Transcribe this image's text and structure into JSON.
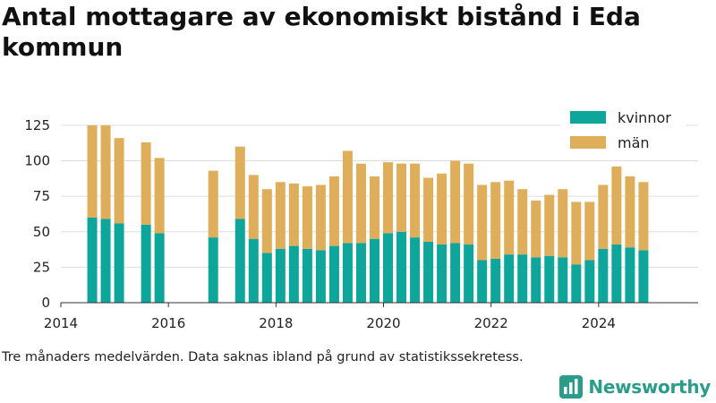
{
  "chart_data": {
    "type": "bar",
    "stacked": true,
    "title": "Antal mottagare av ekonomiskt bistånd i Eda kommun",
    "x_ticks": [
      "2014",
      "2016",
      "2018",
      "2020",
      "2022",
      "2024"
    ],
    "y_ticks": [
      "0",
      "25",
      "50",
      "75",
      "100",
      "125"
    ],
    "ylim": [
      0,
      130
    ],
    "grid": "horizontal",
    "legend_position": "top-right",
    "series": [
      {
        "name": "kvinnor",
        "color": "#0ea59a",
        "points": [
          {
            "x": "2014-08",
            "y": 60
          },
          {
            "x": "2014-11",
            "y": 59
          },
          {
            "x": "2015-02",
            "y": 56
          },
          {
            "x": "2015-08",
            "y": 55
          },
          {
            "x": "2015-11",
            "y": 49
          },
          {
            "x": "2016-11",
            "y": 46
          },
          {
            "x": "2017-05",
            "y": 59
          },
          {
            "x": "2017-08",
            "y": 45
          },
          {
            "x": "2017-11",
            "y": 35
          },
          {
            "x": "2018-02",
            "y": 38
          },
          {
            "x": "2018-05",
            "y": 40
          },
          {
            "x": "2018-08",
            "y": 38
          },
          {
            "x": "2018-11",
            "y": 37
          },
          {
            "x": "2019-02",
            "y": 40
          },
          {
            "x": "2019-05",
            "y": 42
          },
          {
            "x": "2019-08",
            "y": 42
          },
          {
            "x": "2019-11",
            "y": 45
          },
          {
            "x": "2020-02",
            "y": 49
          },
          {
            "x": "2020-05",
            "y": 50
          },
          {
            "x": "2020-08",
            "y": 46
          },
          {
            "x": "2020-11",
            "y": 43
          },
          {
            "x": "2021-02",
            "y": 41
          },
          {
            "x": "2021-05",
            "y": 42
          },
          {
            "x": "2021-08",
            "y": 41
          },
          {
            "x": "2021-11",
            "y": 30
          },
          {
            "x": "2022-02",
            "y": 31
          },
          {
            "x": "2022-05",
            "y": 34
          },
          {
            "x": "2022-08",
            "y": 34
          },
          {
            "x": "2022-11",
            "y": 32
          },
          {
            "x": "2023-02",
            "y": 33
          },
          {
            "x": "2023-05",
            "y": 32
          },
          {
            "x": "2023-08",
            "y": 27
          },
          {
            "x": "2023-11",
            "y": 30
          },
          {
            "x": "2024-02",
            "y": 38
          },
          {
            "x": "2024-05",
            "y": 41
          },
          {
            "x": "2024-08",
            "y": 39
          },
          {
            "x": "2024-11",
            "y": 37
          }
        ]
      },
      {
        "name": "män",
        "color": "#deae5a",
        "points": [
          {
            "x": "2014-08",
            "y": 65
          },
          {
            "x": "2014-11",
            "y": 66
          },
          {
            "x": "2015-02",
            "y": 60
          },
          {
            "x": "2015-08",
            "y": 58
          },
          {
            "x": "2015-11",
            "y": 53
          },
          {
            "x": "2016-11",
            "y": 47
          },
          {
            "x": "2017-05",
            "y": 51
          },
          {
            "x": "2017-08",
            "y": 45
          },
          {
            "x": "2017-11",
            "y": 45
          },
          {
            "x": "2018-02",
            "y": 47
          },
          {
            "x": "2018-05",
            "y": 44
          },
          {
            "x": "2018-08",
            "y": 44
          },
          {
            "x": "2018-11",
            "y": 46
          },
          {
            "x": "2019-02",
            "y": 49
          },
          {
            "x": "2019-05",
            "y": 65
          },
          {
            "x": "2019-08",
            "y": 56
          },
          {
            "x": "2019-11",
            "y": 44
          },
          {
            "x": "2020-02",
            "y": 50
          },
          {
            "x": "2020-05",
            "y": 48
          },
          {
            "x": "2020-08",
            "y": 52
          },
          {
            "x": "2020-11",
            "y": 45
          },
          {
            "x": "2021-02",
            "y": 50
          },
          {
            "x": "2021-05",
            "y": 58
          },
          {
            "x": "2021-08",
            "y": 57
          },
          {
            "x": "2021-11",
            "y": 53
          },
          {
            "x": "2022-02",
            "y": 54
          },
          {
            "x": "2022-05",
            "y": 52
          },
          {
            "x": "2022-08",
            "y": 46
          },
          {
            "x": "2022-11",
            "y": 40
          },
          {
            "x": "2023-02",
            "y": 43
          },
          {
            "x": "2023-05",
            "y": 48
          },
          {
            "x": "2023-08",
            "y": 44
          },
          {
            "x": "2023-11",
            "y": 41
          },
          {
            "x": "2024-02",
            "y": 45
          },
          {
            "x": "2024-05",
            "y": 55
          },
          {
            "x": "2024-08",
            "y": 50
          },
          {
            "x": "2024-11",
            "y": 48
          }
        ]
      }
    ]
  },
  "caption": "Tre månaders medelvärden. Data saknas ibland på grund av statistikssekretess.",
  "brand": {
    "name": "Newsworthy",
    "color": "#2b9b8a",
    "icon": "bar-chart-icon"
  }
}
